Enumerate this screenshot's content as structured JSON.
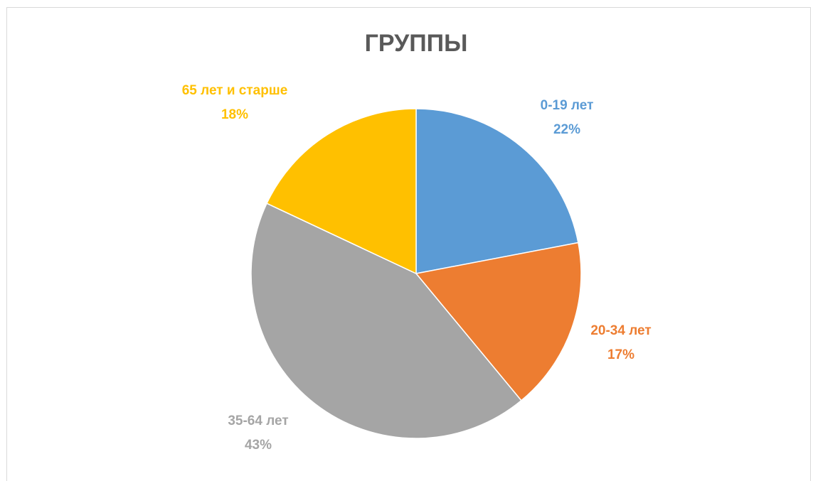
{
  "chart_data": {
    "type": "pie",
    "title": "ГРУППЫ",
    "categories": [
      "0-19 лет",
      "20-34 лет",
      "35-64 лет",
      "65 лет и старше"
    ],
    "values": [
      22,
      17,
      43,
      18
    ],
    "value_labels": [
      "22%",
      "17%",
      "43%",
      "18%"
    ],
    "colors": [
      "#5b9bd5",
      "#ed7d31",
      "#a5a5a5",
      "#ffc000"
    ]
  }
}
